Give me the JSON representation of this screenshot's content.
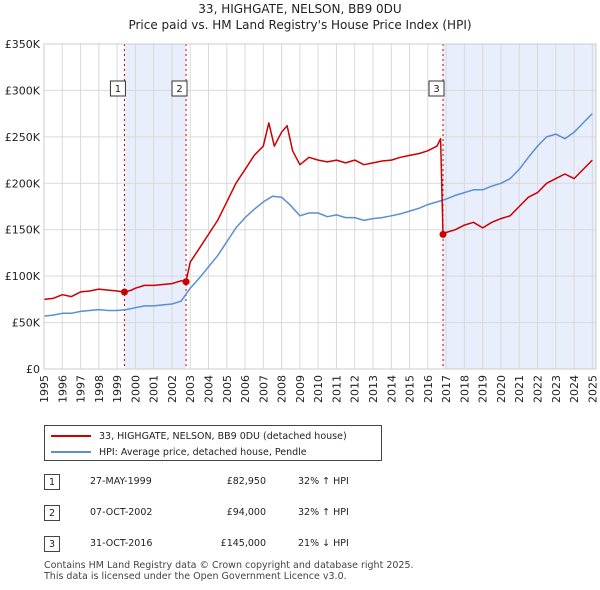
{
  "header": {
    "title": "33, HIGHGATE, NELSON, BB9 0DU",
    "subtitle": "Price paid vs. HM Land Registry's House Price Index (HPI)"
  },
  "chart_data": {
    "type": "line",
    "title": "33, HIGHGATE, NELSON, BB9 0DU",
    "subtitle": "Price paid vs. HM Land Registry's House Price Index (HPI)",
    "xlim": [
      1995,
      2025.2
    ],
    "ylim": [
      0,
      350000
    ],
    "y_ticks": [
      0,
      50000,
      100000,
      150000,
      200000,
      250000,
      300000,
      350000
    ],
    "y_tick_labels": [
      "£0",
      "£50K",
      "£100K",
      "£150K",
      "£200K",
      "£250K",
      "£300K",
      "£350K"
    ],
    "x_ticks": [
      1995,
      1996,
      1997,
      1998,
      1999,
      2000,
      2001,
      2002,
      2003,
      2004,
      2005,
      2006,
      2007,
      2008,
      2009,
      2010,
      2011,
      2012,
      2013,
      2014,
      2015,
      2016,
      2017,
      2018,
      2019,
      2020,
      2021,
      2022,
      2023,
      2024,
      2025
    ],
    "x_tick_labels": [
      "1995",
      "1996",
      "1997",
      "1998",
      "1999",
      "2000",
      "2001",
      "2002",
      "2003",
      "2004",
      "2005",
      "2006",
      "2007",
      "2008",
      "2009",
      "2010",
      "2011",
      "2012",
      "2013",
      "2014",
      "2015",
      "2016",
      "2017",
      "2018",
      "2019",
      "2020",
      "2021",
      "2022",
      "2023",
      "2024",
      "2025"
    ],
    "grid": true,
    "shaded_ranges": [
      [
        1999.4,
        2002.77
      ],
      [
        2016.83,
        2025.2
      ]
    ],
    "series": [
      {
        "name": "33, HIGHGATE, NELSON, BB9 0DU (detached house)",
        "color": "#cc0000",
        "x": [
          1995,
          1995.5,
          1996,
          1996.5,
          1997,
          1997.5,
          1998,
          1998.5,
          1999,
          1999.4,
          1999.8,
          2000,
          2000.5,
          2001,
          2001.5,
          2002,
          2002.5,
          2002.77,
          2003,
          2003.5,
          2004,
          2004.5,
          2005,
          2005.5,
          2006,
          2006.5,
          2007,
          2007.3,
          2007.6,
          2008,
          2008.3,
          2008.6,
          2009,
          2009.5,
          2010,
          2010.5,
          2011,
          2011.5,
          2012,
          2012.5,
          2013,
          2013.5,
          2014,
          2014.5,
          2015,
          2015.5,
          2016,
          2016.5,
          2016.7,
          2016.83,
          2017,
          2017.5,
          2018,
          2018.5,
          2019,
          2019.5,
          2020,
          2020.5,
          2021,
          2021.5,
          2022,
          2022.5,
          2023,
          2023.5,
          2024,
          2024.5,
          2025
        ],
        "values": [
          75000,
          76000,
          80000,
          78000,
          83000,
          84000,
          86000,
          85000,
          84000,
          82950,
          85000,
          87000,
          90000,
          90000,
          91000,
          92000,
          95000,
          94000,
          115000,
          130000,
          145000,
          160000,
          180000,
          200000,
          215000,
          230000,
          240000,
          265000,
          240000,
          255000,
          262000,
          235000,
          220000,
          228000,
          225000,
          223000,
          225000,
          222000,
          225000,
          220000,
          222000,
          224000,
          225000,
          228000,
          230000,
          232000,
          235000,
          240000,
          248000,
          145000,
          147000,
          150000,
          155000,
          158000,
          152000,
          158000,
          162000,
          165000,
          175000,
          185000,
          190000,
          200000,
          205000,
          210000,
          205000,
          215000,
          225000
        ]
      },
      {
        "name": "HPI: Average price, detached house, Pendle",
        "color": "#5b8fd0",
        "x": [
          1995,
          1995.5,
          1996,
          1996.5,
          1997,
          1997.5,
          1998,
          1998.5,
          1999,
          1999.5,
          2000,
          2000.5,
          2001,
          2001.5,
          2002,
          2002.5,
          2003,
          2003.5,
          2004,
          2004.5,
          2005,
          2005.5,
          2006,
          2006.5,
          2007,
          2007.5,
          2008,
          2008.5,
          2009,
          2009.5,
          2010,
          2010.5,
          2011,
          2011.5,
          2012,
          2012.5,
          2013,
          2013.5,
          2014,
          2014.5,
          2015,
          2015.5,
          2016,
          2016.5,
          2017,
          2017.5,
          2018,
          2018.5,
          2019,
          2019.5,
          2020,
          2020.5,
          2021,
          2021.5,
          2022,
          2022.5,
          2023,
          2023.5,
          2024,
          2024.5,
          2025
        ],
        "values": [
          57000,
          58000,
          60000,
          60000,
          62000,
          63000,
          64000,
          63000,
          63000,
          64000,
          66000,
          68000,
          68000,
          69000,
          70000,
          73000,
          87000,
          98000,
          110000,
          122000,
          137000,
          152000,
          163000,
          172000,
          180000,
          186000,
          185000,
          176000,
          165000,
          168000,
          168000,
          164000,
          166000,
          163000,
          163000,
          160000,
          162000,
          163000,
          165000,
          167000,
          170000,
          173000,
          177000,
          180000,
          183000,
          187000,
          190000,
          193000,
          193000,
          197000,
          200000,
          205000,
          215000,
          228000,
          240000,
          250000,
          253000,
          248000,
          255000,
          265000,
          275000
        ]
      }
    ],
    "markers": [
      {
        "label": "1",
        "x": 1999.4,
        "y": 82950
      },
      {
        "label": "2",
        "x": 2002.77,
        "y": 94000
      },
      {
        "label": "3",
        "x": 2016.83,
        "y": 145000
      }
    ],
    "legend": [
      "33, HIGHGATE, NELSON, BB9 0DU (detached house)",
      "HPI: Average price, detached house, Pendle"
    ],
    "legend_position": "below"
  },
  "legend": {
    "series1": "33, HIGHGATE, NELSON, BB9 0DU (detached house)",
    "series2": "HPI: Average price, detached house, Pendle"
  },
  "colors": {
    "price": "#cc0000",
    "hpi": "#5b8fd0",
    "shade": "#e8eefb",
    "grid": "#d9d9d9"
  },
  "transactions": [
    {
      "num": "1",
      "date": "27-MAY-1999",
      "price": "£82,950",
      "hpi": "32% ↑ HPI"
    },
    {
      "num": "2",
      "date": "07-OCT-2002",
      "price": "£94,000",
      "hpi": "32% ↑ HPI"
    },
    {
      "num": "3",
      "date": "31-OCT-2016",
      "price": "£145,000",
      "hpi": "21% ↓ HPI"
    }
  ],
  "footer": {
    "line1": "Contains HM Land Registry data © Crown copyright and database right 2025.",
    "line2": "This data is licensed under the Open Government Licence v3.0."
  }
}
